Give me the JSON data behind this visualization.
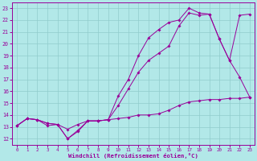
{
  "background_color": "#b2e8e8",
  "grid_color": "#90cccc",
  "line_color": "#990099",
  "xlabel": "Windchill (Refroidissement éolien,°C)",
  "xlim": [
    -0.5,
    23.5
  ],
  "ylim": [
    11.5,
    23.5
  ],
  "yticks": [
    12,
    13,
    14,
    15,
    16,
    17,
    18,
    19,
    20,
    21,
    22,
    23
  ],
  "xticks": [
    0,
    1,
    2,
    3,
    4,
    5,
    6,
    7,
    8,
    9,
    10,
    11,
    12,
    13,
    14,
    15,
    16,
    17,
    18,
    19,
    20,
    21,
    22,
    23
  ],
  "line1_x": [
    0,
    1,
    2,
    3,
    4,
    5,
    6,
    7,
    8,
    9,
    10,
    11,
    12,
    13,
    14,
    15,
    16,
    17,
    18,
    19,
    20,
    21,
    22,
    23
  ],
  "line1_y": [
    13.1,
    13.7,
    13.6,
    13.1,
    13.2,
    12.0,
    12.6,
    13.5,
    13.5,
    13.6,
    13.7,
    13.8,
    14.0,
    14.0,
    14.1,
    14.4,
    14.8,
    15.1,
    15.2,
    15.3,
    15.3,
    15.4,
    15.4,
    15.5
  ],
  "line2_x": [
    0,
    1,
    2,
    3,
    4,
    5,
    6,
    7,
    8,
    9,
    10,
    11,
    12,
    13,
    14,
    15,
    16,
    17,
    18,
    19,
    20,
    21,
    22,
    23
  ],
  "line2_y": [
    13.1,
    13.7,
    13.6,
    13.3,
    13.2,
    12.8,
    13.2,
    13.5,
    13.5,
    13.6,
    14.8,
    16.2,
    17.6,
    18.6,
    19.2,
    19.8,
    21.5,
    22.6,
    22.4,
    22.5,
    20.4,
    18.6,
    17.2,
    15.5
  ],
  "line3_x": [
    0,
    1,
    2,
    3,
    4,
    5,
    6,
    7,
    8,
    9,
    10,
    11,
    12,
    13,
    14,
    15,
    16,
    17,
    18,
    19,
    20,
    21,
    22,
    23
  ],
  "line3_y": [
    13.1,
    13.7,
    13.6,
    13.3,
    13.2,
    12.0,
    12.7,
    13.5,
    13.5,
    13.6,
    15.6,
    17.0,
    19.0,
    20.5,
    21.2,
    21.8,
    22.0,
    23.0,
    22.6,
    22.5,
    20.4,
    18.6,
    22.4,
    22.5
  ]
}
